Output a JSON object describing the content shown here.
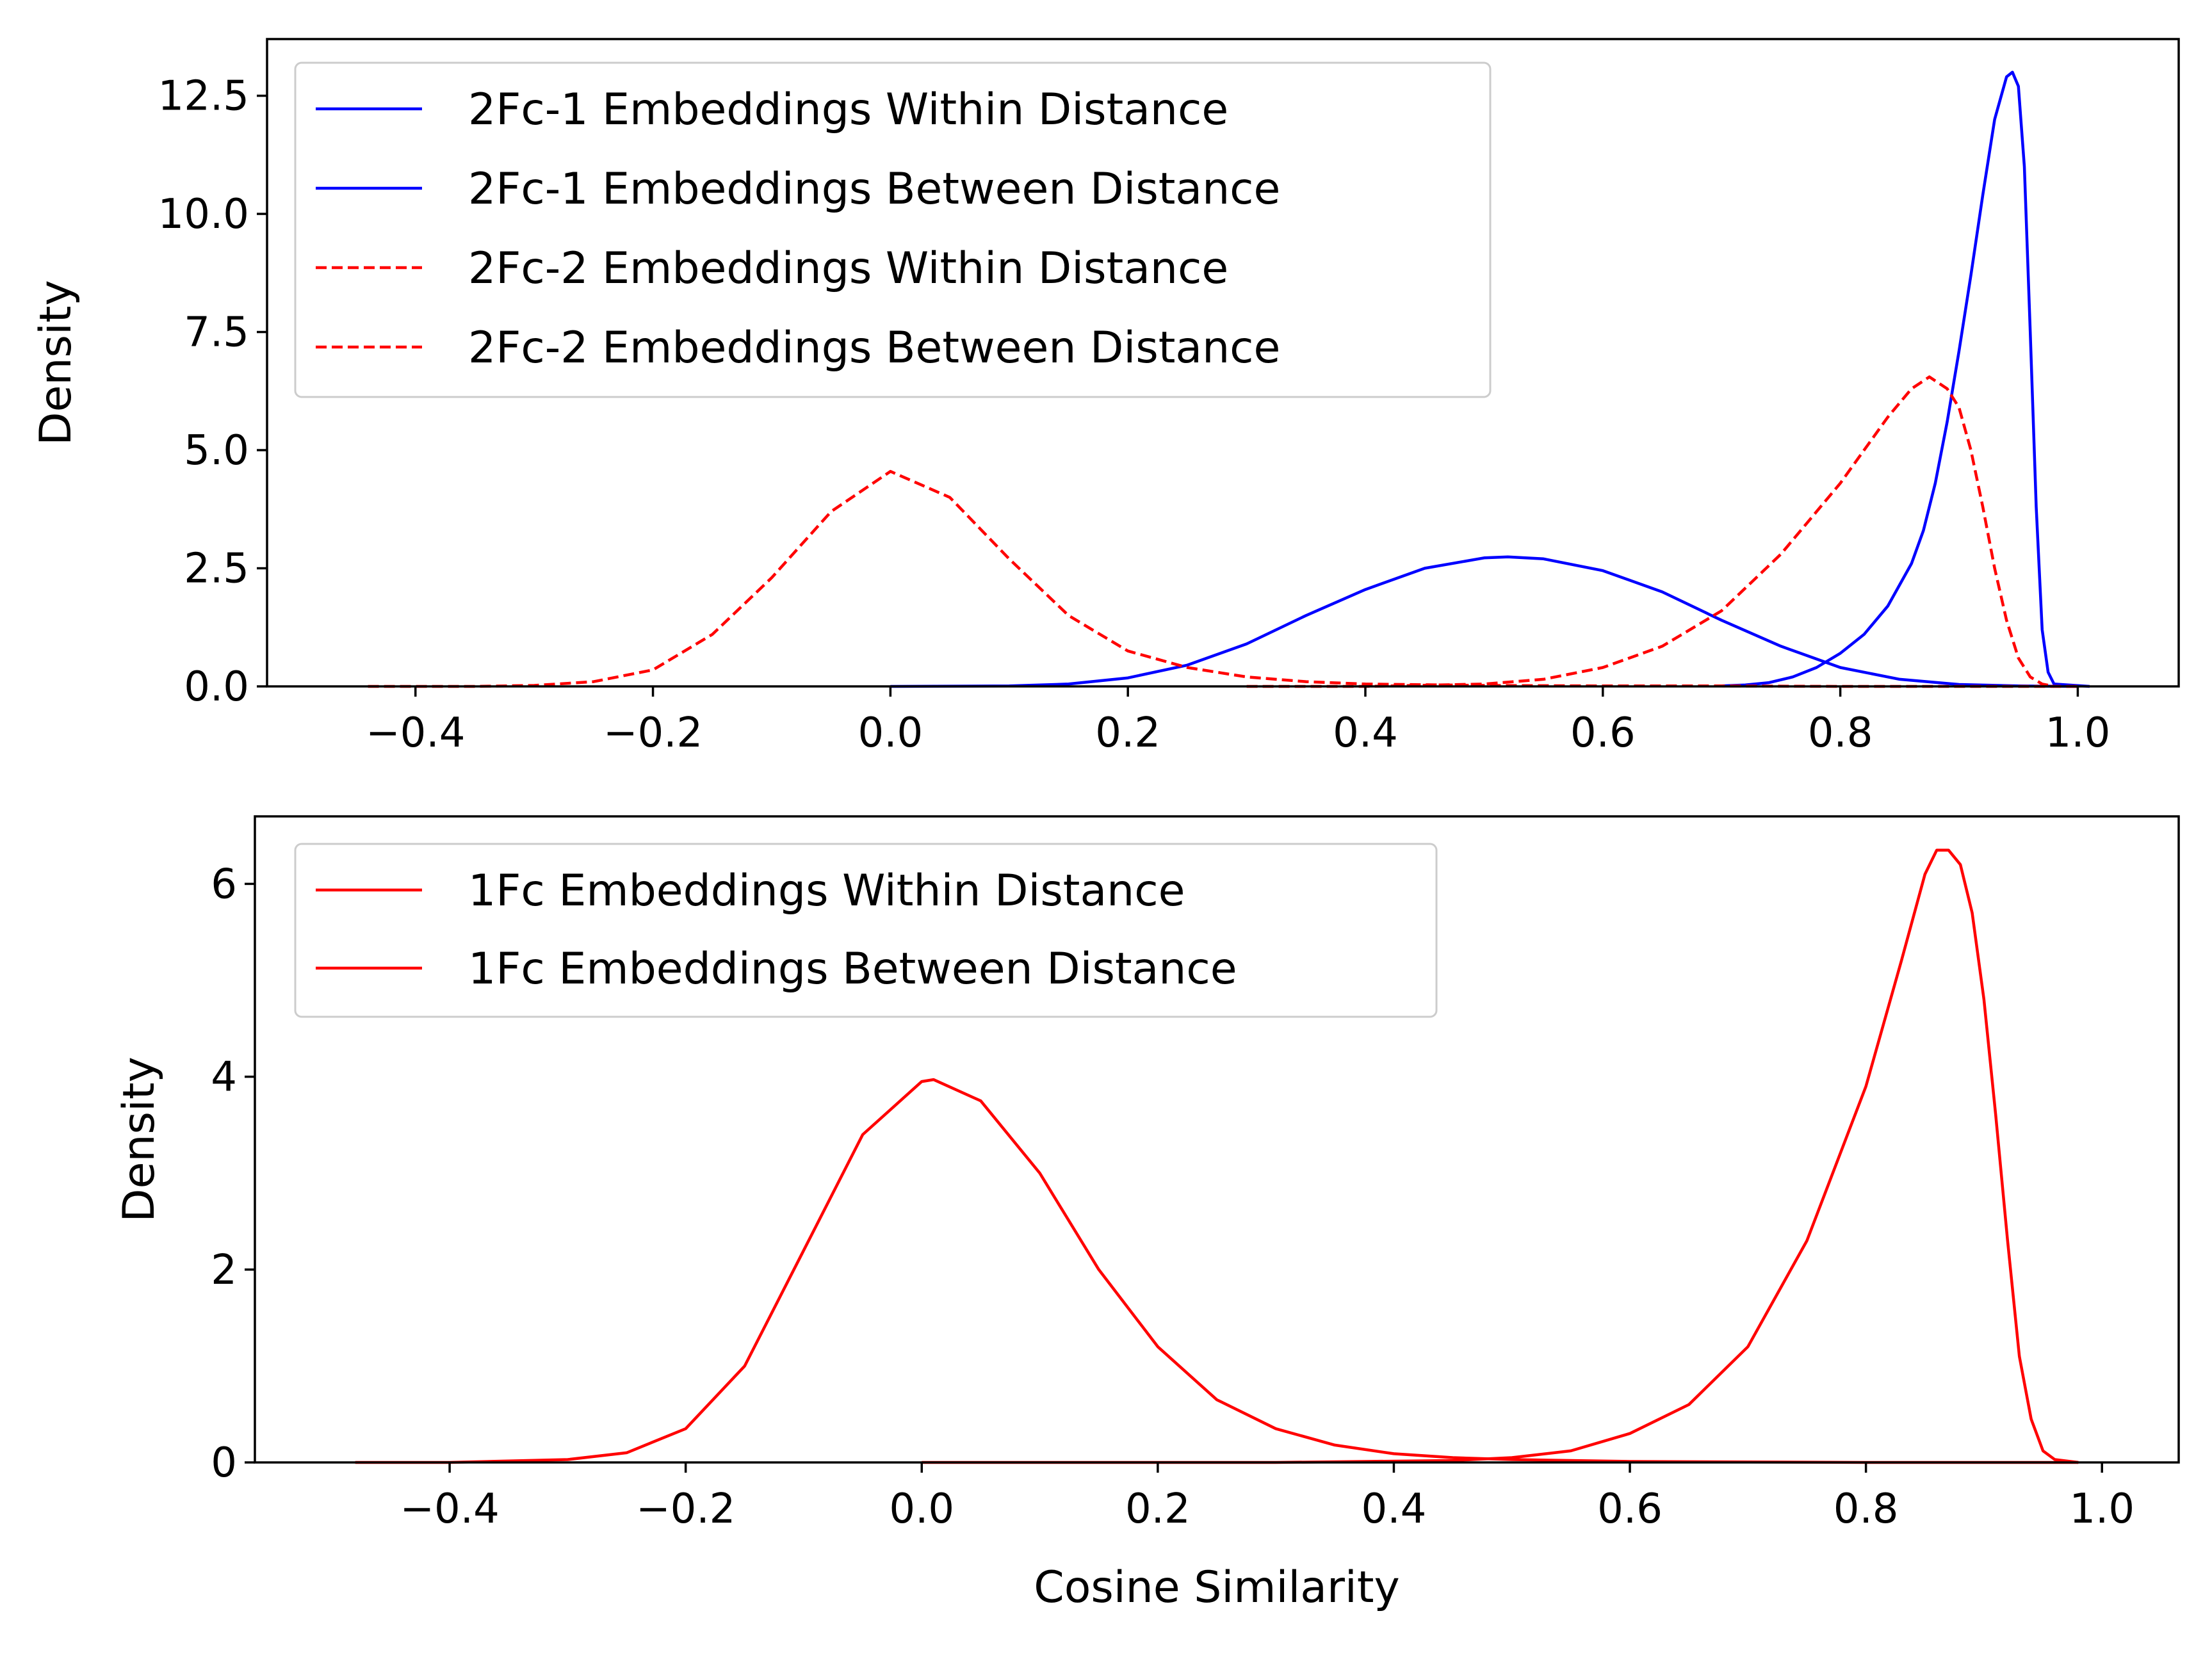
{
  "chart_data": [
    {
      "type": "line",
      "panel": "top",
      "ylabel": "Density",
      "xlabel": "",
      "xlim": [
        -0.525,
        1.085
      ],
      "ylim": [
        0,
        13.7
      ],
      "xticks": [
        -0.4,
        -0.2,
        0.0,
        0.2,
        0.4,
        0.6,
        0.8,
        1.0
      ],
      "xtick_labels": [
        "−0.4",
        "−0.2",
        "0.0",
        "0.2",
        "0.4",
        "0.6",
        "0.8",
        "1.0"
      ],
      "yticks": [
        0,
        2.5,
        5.0,
        7.5,
        10.0,
        12.5
      ],
      "ytick_labels": [
        "0.0",
        "2.5",
        "5.0",
        "7.5",
        "10.0",
        "12.5"
      ],
      "legend_position": "top-left",
      "series": [
        {
          "name": "2Fc-1 Embeddings Within Distance",
          "color": "#0000ff",
          "style": "solid",
          "x": [
            0.7,
            0.72,
            0.74,
            0.76,
            0.78,
            0.8,
            0.82,
            0.84,
            0.86,
            0.87,
            0.88,
            0.89,
            0.9,
            0.91,
            0.92,
            0.93,
            0.94,
            0.945,
            0.95,
            0.955,
            0.96,
            0.965,
            0.97,
            0.975,
            0.98,
            1.01
          ],
          "y": [
            0.01,
            0.03,
            0.08,
            0.2,
            0.4,
            0.7,
            1.1,
            1.7,
            2.6,
            3.3,
            4.3,
            5.6,
            7.1,
            8.7,
            10.4,
            12.0,
            12.9,
            13.0,
            12.7,
            11.0,
            7.5,
            3.8,
            1.2,
            0.3,
            0.05,
            0.0
          ]
        },
        {
          "name": "2Fc-1 Embeddings Between Distance",
          "color": "#0000ff",
          "style": "solid",
          "x": [
            0.0,
            0.1,
            0.15,
            0.2,
            0.25,
            0.3,
            0.35,
            0.4,
            0.45,
            0.5,
            0.52,
            0.55,
            0.6,
            0.65,
            0.7,
            0.75,
            0.8,
            0.85,
            0.9,
            0.95,
            1.0
          ],
          "y": [
            0.0,
            0.01,
            0.05,
            0.18,
            0.45,
            0.9,
            1.5,
            2.05,
            2.5,
            2.72,
            2.74,
            2.7,
            2.45,
            2.0,
            1.4,
            0.85,
            0.4,
            0.15,
            0.04,
            0.01,
            0.0
          ]
        },
        {
          "name": "2Fc-2 Embeddings Within Distance",
          "color": "#ff0000",
          "style": "dashed",
          "x": [
            0.3,
            0.4,
            0.5,
            0.55,
            0.6,
            0.65,
            0.7,
            0.75,
            0.8,
            0.84,
            0.86,
            0.875,
            0.89,
            0.9,
            0.91,
            0.92,
            0.93,
            0.94,
            0.95,
            0.96,
            0.97,
            0.98
          ],
          "y": [
            0.0,
            0.0,
            0.05,
            0.15,
            0.4,
            0.85,
            1.6,
            2.8,
            4.3,
            5.7,
            6.3,
            6.55,
            6.3,
            5.9,
            5.0,
            3.8,
            2.5,
            1.4,
            0.6,
            0.2,
            0.05,
            0.0
          ]
        },
        {
          "name": "2Fc-2 Embeddings Between Distance",
          "color": "#ff0000",
          "style": "dashed",
          "x": [
            -0.44,
            -0.35,
            -0.3,
            -0.25,
            -0.2,
            -0.15,
            -0.1,
            -0.05,
            0.0,
            0.05,
            0.1,
            0.15,
            0.2,
            0.25,
            0.3,
            0.35,
            0.4,
            0.5,
            0.6,
            0.7,
            0.8,
            0.9,
            1.0
          ],
          "y": [
            0.0,
            0.0,
            0.02,
            0.1,
            0.35,
            1.1,
            2.3,
            3.7,
            4.55,
            4.0,
            2.7,
            1.5,
            0.75,
            0.4,
            0.2,
            0.1,
            0.05,
            0.02,
            0.01,
            0.01,
            0.0,
            0.0,
            0.0
          ]
        }
      ]
    },
    {
      "type": "line",
      "panel": "bottom",
      "ylabel": "Density",
      "xlabel": "Cosine Similarity",
      "xlim": [
        -0.565,
        1.065
      ],
      "ylim": [
        0,
        6.7
      ],
      "xticks": [
        -0.4,
        -0.2,
        0.0,
        0.2,
        0.4,
        0.6,
        0.8,
        1.0
      ],
      "xtick_labels": [
        "−0.4",
        "−0.2",
        "0.0",
        "0.2",
        "0.4",
        "0.6",
        "0.8",
        "1.0"
      ],
      "yticks": [
        0,
        2,
        4,
        6
      ],
      "ytick_labels": [
        "0",
        "2",
        "4",
        "6"
      ],
      "legend_position": "top-left",
      "series": [
        {
          "name": "1Fc Embeddings Within Distance",
          "color": "#ff0000",
          "style": "solid",
          "x": [
            0.0,
            0.3,
            0.45,
            0.5,
            0.55,
            0.6,
            0.65,
            0.7,
            0.75,
            0.8,
            0.83,
            0.85,
            0.86,
            0.87,
            0.88,
            0.89,
            0.9,
            0.91,
            0.92,
            0.93,
            0.94,
            0.95,
            0.96,
            0.98
          ],
          "y": [
            0.0,
            0.0,
            0.02,
            0.05,
            0.12,
            0.3,
            0.6,
            1.2,
            2.3,
            3.9,
            5.2,
            6.1,
            6.35,
            6.35,
            6.2,
            5.7,
            4.8,
            3.6,
            2.3,
            1.1,
            0.45,
            0.12,
            0.03,
            0.0
          ]
        },
        {
          "name": "1Fc Embeddings Between Distance",
          "color": "#ff0000",
          "style": "solid",
          "x": [
            -0.48,
            -0.4,
            -0.3,
            -0.25,
            -0.2,
            -0.15,
            -0.1,
            -0.05,
            0.0,
            0.01,
            0.05,
            0.1,
            0.15,
            0.2,
            0.25,
            0.3,
            0.35,
            0.4,
            0.45,
            0.5,
            0.6,
            0.8,
            0.98
          ],
          "y": [
            0.0,
            0.0,
            0.03,
            0.1,
            0.35,
            1.0,
            2.2,
            3.4,
            3.95,
            3.97,
            3.75,
            3.0,
            2.0,
            1.2,
            0.65,
            0.35,
            0.18,
            0.09,
            0.05,
            0.03,
            0.01,
            0.0,
            0.0
          ]
        }
      ]
    }
  ]
}
